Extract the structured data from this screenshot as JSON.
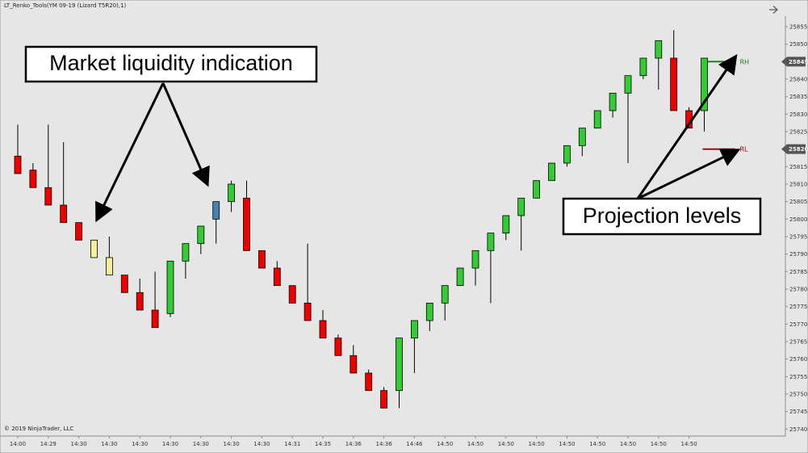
{
  "window": {
    "title": "LT_Renko_Tools(YM 09-19 (Lizard T5R20),1)",
    "copyright": "© 2019 NinjaTrader, LLC",
    "arrow_icon": "arrow-right-icon"
  },
  "callouts": {
    "liquidity": "Market liquidity indication",
    "projection": "Projection levels"
  },
  "colors": {
    "background": "#e6e6e6",
    "up": "#33cc33",
    "down": "#ee0000",
    "liquidity_low": "#f6ee9a",
    "liquidity_high": "#4682b4",
    "rh": "#1a7a1a",
    "rl": "#990000"
  },
  "chart_data": {
    "type": "candlestick",
    "ylim": [
      25738,
      25858
    ],
    "y_tick_step": 5,
    "y_tick_labels_first": 25740,
    "y_tick_labels_last": 25855,
    "price_markers": [
      {
        "label": "25845",
        "value": 25845
      },
      {
        "label": "25820",
        "value": 25820
      }
    ],
    "levels": [
      {
        "name": "RH",
        "value": 25845,
        "color": "#1a7a1a"
      },
      {
        "name": "RL",
        "value": 25820,
        "color": "#990000"
      }
    ],
    "x_labels": [
      "14:00",
      "14:29",
      "14:30",
      "14:30",
      "14:30",
      "14:30",
      "14:30",
      "14:30",
      "14:30",
      "14:31",
      "14:35",
      "14:36",
      "14:36",
      "14:46",
      "14:50",
      "14:50",
      "14:50",
      "14:50",
      "14:50",
      "14:50",
      "14:50",
      "14:50",
      "14:50"
    ],
    "candles": [
      {
        "o": 25813,
        "c": 25818,
        "h": 25827,
        "l": 25813,
        "k": "down"
      },
      {
        "o": 25809,
        "c": 25814,
        "h": 25816,
        "l": 25809,
        "k": "down"
      },
      {
        "o": 25804,
        "c": 25809,
        "h": 25827,
        "l": 25804,
        "k": "down"
      },
      {
        "o": 25799,
        "c": 25804,
        "h": 25822,
        "l": 25799,
        "k": "down"
      },
      {
        "o": 25794,
        "c": 25799,
        "h": 25799,
        "l": 25794,
        "k": "down"
      },
      {
        "o": 25789,
        "c": 25794,
        "h": 25794,
        "l": 25789,
        "k": "liquidity_low"
      },
      {
        "o": 25784,
        "c": 25789,
        "h": 25795,
        "l": 25784,
        "k": "liquidity_low"
      },
      {
        "o": 25779,
        "c": 25784,
        "h": 25784,
        "l": 25779,
        "k": "down"
      },
      {
        "o": 25774,
        "c": 25779,
        "h": 25783,
        "l": 25774,
        "k": "down"
      },
      {
        "o": 25769,
        "c": 25774,
        "h": 25785,
        "l": 25769,
        "k": "down"
      },
      {
        "o": 25773,
        "c": 25788,
        "h": 25788,
        "l": 25772,
        "k": "up"
      },
      {
        "o": 25788,
        "c": 25793,
        "h": 25793,
        "l": 25783,
        "k": "up"
      },
      {
        "o": 25793,
        "c": 25798,
        "h": 25798,
        "l": 25790,
        "k": "up"
      },
      {
        "o": 25800,
        "c": 25805,
        "h": 25805,
        "l": 25793,
        "k": "liquidity_high"
      },
      {
        "o": 25805,
        "c": 25810,
        "h": 25811,
        "l": 25802,
        "k": "up"
      },
      {
        "o": 25791,
        "c": 25806,
        "h": 25811,
        "l": 25791,
        "k": "down"
      },
      {
        "o": 25786,
        "c": 25791,
        "h": 25791,
        "l": 25786,
        "k": "down"
      },
      {
        "o": 25781,
        "c": 25786,
        "h": 25788,
        "l": 25781,
        "k": "down"
      },
      {
        "o": 25776,
        "c": 25781,
        "h": 25781,
        "l": 25776,
        "k": "down"
      },
      {
        "o": 25771,
        "c": 25776,
        "h": 25793,
        "l": 25771,
        "k": "down"
      },
      {
        "o": 25766,
        "c": 25771,
        "h": 25774,
        "l": 25766,
        "k": "down"
      },
      {
        "o": 25761,
        "c": 25766,
        "h": 25767,
        "l": 25761,
        "k": "down"
      },
      {
        "o": 25756,
        "c": 25761,
        "h": 25764,
        "l": 25756,
        "k": "down"
      },
      {
        "o": 25751,
        "c": 25756,
        "h": 25757,
        "l": 25751,
        "k": "down"
      },
      {
        "o": 25746,
        "c": 25751,
        "h": 25752,
        "l": 25746,
        "k": "down"
      },
      {
        "o": 25751,
        "c": 25766,
        "h": 25766,
        "l": 25746,
        "k": "up"
      },
      {
        "o": 25766,
        "c": 25771,
        "h": 25771,
        "l": 25756,
        "k": "up"
      },
      {
        "o": 25771,
        "c": 25776,
        "h": 25776,
        "l": 25768,
        "k": "up"
      },
      {
        "o": 25776,
        "c": 25781,
        "h": 25781,
        "l": 25771,
        "k": "up"
      },
      {
        "o": 25781,
        "c": 25786,
        "h": 25786,
        "l": 25781,
        "k": "up"
      },
      {
        "o": 25786,
        "c": 25791,
        "h": 25791,
        "l": 25781,
        "k": "up"
      },
      {
        "o": 25791,
        "c": 25796,
        "h": 25796,
        "l": 25776,
        "k": "up"
      },
      {
        "o": 25796,
        "c": 25801,
        "h": 25801,
        "l": 25794,
        "k": "up"
      },
      {
        "o": 25801,
        "c": 25806,
        "h": 25806,
        "l": 25791,
        "k": "up"
      },
      {
        "o": 25806,
        "c": 25811,
        "h": 25811,
        "l": 25806,
        "k": "up"
      },
      {
        "o": 25811,
        "c": 25816,
        "h": 25816,
        "l": 25811,
        "k": "up"
      },
      {
        "o": 25816,
        "c": 25821,
        "h": 25821,
        "l": 25815,
        "k": "up"
      },
      {
        "o": 25821,
        "c": 25826,
        "h": 25826,
        "l": 25818,
        "k": "up"
      },
      {
        "o": 25826,
        "c": 25831,
        "h": 25831,
        "l": 25826,
        "k": "up"
      },
      {
        "o": 25831,
        "c": 25836,
        "h": 25836,
        "l": 25829,
        "k": "up"
      },
      {
        "o": 25836,
        "c": 25841,
        "h": 25841,
        "l": 25816,
        "k": "up"
      },
      {
        "o": 25841,
        "c": 25846,
        "h": 25846,
        "l": 25840,
        "k": "up"
      },
      {
        "o": 25846,
        "c": 25851,
        "h": 25851,
        "l": 25837,
        "k": "up"
      },
      {
        "o": 25831,
        "c": 25846,
        "h": 25854,
        "l": 25831,
        "k": "down"
      },
      {
        "o": 25826,
        "c": 25831,
        "h": 25832,
        "l": 25826,
        "k": "down"
      },
      {
        "o": 25831,
        "c": 25846,
        "h": 25846,
        "l": 25825,
        "k": "up"
      }
    ]
  }
}
